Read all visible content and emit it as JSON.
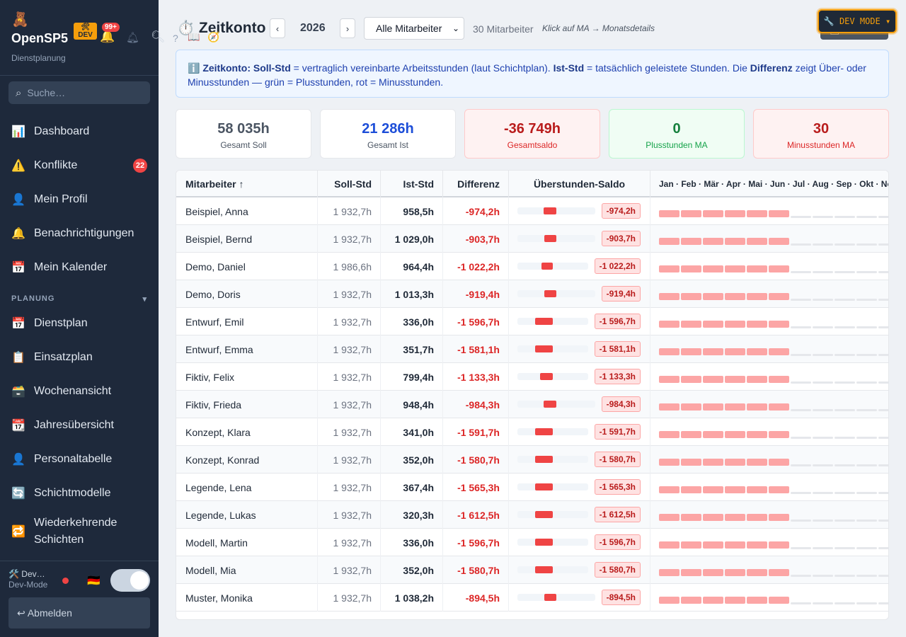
{
  "sidebar": {
    "brand_icon": "🧸",
    "app_name": "OpenSP5",
    "app_sub": "Dienstplanung",
    "dev_badge": "🛠 DEV",
    "notif_count": "99+",
    "search_placeholder": "Suche…",
    "section_planung": "PLANUNG",
    "section_chevron": "▾",
    "items": [
      {
        "icon": "📊",
        "label": "Dashboard",
        "badge": ""
      },
      {
        "icon": "⚠️",
        "label": "Konflikte",
        "badge": "22"
      },
      {
        "icon": "👤",
        "label": "Mein Profil",
        "badge": ""
      },
      {
        "icon": "🔔",
        "label": "Benachrichtigungen",
        "badge": ""
      },
      {
        "icon": "📅",
        "label": "Mein Kalender",
        "badge": ""
      },
      {
        "icon": "📅",
        "label": "Dienstplan",
        "badge": ""
      },
      {
        "icon": "📋",
        "label": "Einsatzplan",
        "badge": ""
      },
      {
        "icon": "🗃️",
        "label": "Wochenansicht",
        "badge": ""
      },
      {
        "icon": "📆",
        "label": "Jahresübersicht",
        "badge": ""
      },
      {
        "icon": "👤",
        "label": "Personaltabelle",
        "badge": ""
      },
      {
        "icon": "🔄",
        "label": "Schichtmodelle",
        "badge": ""
      },
      {
        "icon": "🔁",
        "label": "Wiederkehrende Schichten",
        "badge": ""
      }
    ],
    "user_name": "🛠️ Dev…",
    "user_role": "Dev-Mode",
    "language_flag": "🇩🇪",
    "logout_label": "↩ Abmelden"
  },
  "topbar": {
    "title_icon": "⏱️",
    "title": "Zeitkonto",
    "prev_label": "‹",
    "next_label": "›",
    "year": "2026",
    "filter_value": "Alle Mitarbeiter",
    "ma_count": "30 Mitarbeiter",
    "hint": "Klick auf MA → Monatsdetails",
    "print_label": "🖨 Drucken",
    "devmode_label": "🔧 DEV MODE ▾"
  },
  "info": {
    "icon": "ℹ️",
    "part1_bold": "Zeitkonto: Soll-Std",
    "part1": " = vertraglich vereinbarte Arbeitsstunden (laut Schichtplan). ",
    "part2_bold": "Ist-Std",
    "part2": " = tatsächlich geleistete Stunden. Die ",
    "part3_bold": "Differenz",
    "part3": " zeigt Über- oder Minusstunden — grün = Plusstunden, rot = Minusstunden."
  },
  "stats": [
    {
      "value": "58 035h",
      "label": "Gesamt Soll",
      "color": "#4b5563",
      "label_color": "#4b5563",
      "bg": "#ffffff",
      "border": "#e5e7eb"
    },
    {
      "value": "21 286h",
      "label": "Gesamt Ist",
      "color": "#1d4ed8",
      "label_color": "#4b5563",
      "bg": "#ffffff",
      "border": "#e5e7eb"
    },
    {
      "value": "-36 749h",
      "label": "Gesamtsaldo",
      "color": "#b91c1c",
      "label_color": "#dc2626",
      "bg": "#fef2f2",
      "border": "#fecaca"
    },
    {
      "value": "0",
      "label": "Plusstunden MA",
      "color": "#15803d",
      "label_color": "#16a34a",
      "bg": "#f0fdf4",
      "border": "#bbf7d0"
    },
    {
      "value": "30",
      "label": "Minusstunden MA",
      "color": "#b91c1c",
      "label_color": "#dc2626",
      "bg": "#fef2f2",
      "border": "#fecaca"
    }
  ],
  "table": {
    "columns": [
      "Mitarbeiter ↑",
      "Soll-Std",
      "Ist-Std",
      "Differenz",
      "Überstunden-Saldo",
      "Jan · Feb · Mär · Apr · Mai · Jun · Jul · Aug · Sep · Okt · Nov · Dez"
    ],
    "filled_months": 6,
    "total_months": 12,
    "rows": [
      {
        "name": "Beispiel, Anna",
        "soll": "1 932,7h",
        "ist": "958,5h",
        "diff": "-974,2h",
        "saldo": "-974,2h",
        "saldo_fraction": 0.16
      },
      {
        "name": "Beispiel, Bernd",
        "soll": "1 932,7h",
        "ist": "1 029,0h",
        "diff": "-903,7h",
        "saldo": "-903,7h",
        "saldo_fraction": 0.15
      },
      {
        "name": "Demo, Daniel",
        "soll": "1 986,6h",
        "ist": "964,4h",
        "diff": "-1 022,2h",
        "saldo": "-1 022,2h",
        "saldo_fraction": 0.16
      },
      {
        "name": "Demo, Doris",
        "soll": "1 932,7h",
        "ist": "1 013,3h",
        "diff": "-919,4h",
        "saldo": "-919,4h",
        "saldo_fraction": 0.15
      },
      {
        "name": "Entwurf, Emil",
        "soll": "1 932,7h",
        "ist": "336,0h",
        "diff": "-1 596,7h",
        "saldo": "-1 596,7h",
        "saldo_fraction": 0.25
      },
      {
        "name": "Entwurf, Emma",
        "soll": "1 932,7h",
        "ist": "351,7h",
        "diff": "-1 581,1h",
        "saldo": "-1 581,1h",
        "saldo_fraction": 0.25
      },
      {
        "name": "Fiktiv, Felix",
        "soll": "1 932,7h",
        "ist": "799,4h",
        "diff": "-1 133,3h",
        "saldo": "-1 133,3h",
        "saldo_fraction": 0.18
      },
      {
        "name": "Fiktiv, Frieda",
        "soll": "1 932,7h",
        "ist": "948,4h",
        "diff": "-984,3h",
        "saldo": "-984,3h",
        "saldo_fraction": 0.16
      },
      {
        "name": "Konzept, Klara",
        "soll": "1 932,7h",
        "ist": "341,0h",
        "diff": "-1 591,7h",
        "saldo": "-1 591,7h",
        "saldo_fraction": 0.25
      },
      {
        "name": "Konzept, Konrad",
        "soll": "1 932,7h",
        "ist": "352,0h",
        "diff": "-1 580,7h",
        "saldo": "-1 580,7h",
        "saldo_fraction": 0.25
      },
      {
        "name": "Legende, Lena",
        "soll": "1 932,7h",
        "ist": "367,4h",
        "diff": "-1 565,3h",
        "saldo": "-1 565,3h",
        "saldo_fraction": 0.25
      },
      {
        "name": "Legende, Lukas",
        "soll": "1 932,7h",
        "ist": "320,3h",
        "diff": "-1 612,5h",
        "saldo": "-1 612,5h",
        "saldo_fraction": 0.25
      },
      {
        "name": "Modell, Martin",
        "soll": "1 932,7h",
        "ist": "336,0h",
        "diff": "-1 596,7h",
        "saldo": "-1 596,7h",
        "saldo_fraction": 0.25
      },
      {
        "name": "Modell, Mia",
        "soll": "1 932,7h",
        "ist": "352,0h",
        "diff": "-1 580,7h",
        "saldo": "-1 580,7h",
        "saldo_fraction": 0.25
      },
      {
        "name": "Muster, Monika",
        "soll": "1 932,7h",
        "ist": "1 038,2h",
        "diff": "-894,5h",
        "saldo": "-894,5h",
        "saldo_fraction": 0.15
      }
    ]
  }
}
